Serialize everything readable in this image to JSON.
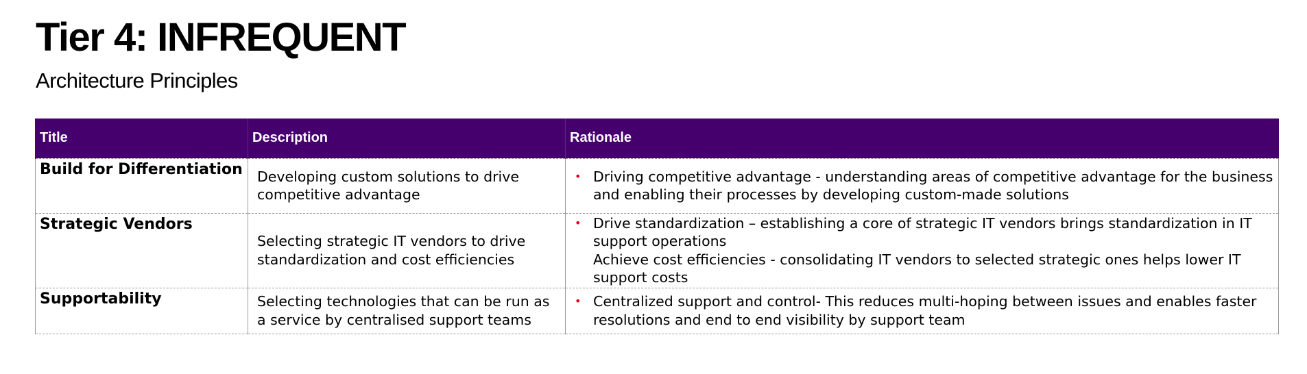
{
  "heading": "Tier 4: INFREQUENT",
  "subheading": "Architecture Principles",
  "columns": [
    "Title",
    "Description",
    "Rationale"
  ],
  "rows": [
    {
      "title": "Build for Differentiation",
      "description": "Developing custom solutions to drive competitive advantage",
      "rationale": [
        {
          "bullet": true,
          "text": "Driving competitive advantage - understanding areas of competitive advantage for the business and enabling their processes by developing custom-made solutions"
        }
      ]
    },
    {
      "title": "Strategic Vendors",
      "description": "Selecting strategic IT vendors to drive standardization and cost efficiencies",
      "rationale": [
        {
          "bullet": true,
          "text": "Drive standardization – establishing a core of strategic IT vendors brings standardization in IT support operations"
        },
        {
          "bullet": false,
          "text": "Achieve cost efficiencies - consolidating IT vendors to selected strategic ones helps lower IT support costs"
        }
      ]
    },
    {
      "title": "Supportability",
      "description": "Selecting technologies that can be run as a service by centralised support teams",
      "rationale": [
        {
          "bullet": true,
          "text": "Centralized support and control- This reduces multi-hoping between issues and enables faster resolutions and end to end visibility by support team"
        }
      ]
    }
  ],
  "colors": {
    "header_bg": "#46006e",
    "header_text": "#ffffff",
    "bullet": "#e0001b",
    "border": "#9a9a9a"
  }
}
